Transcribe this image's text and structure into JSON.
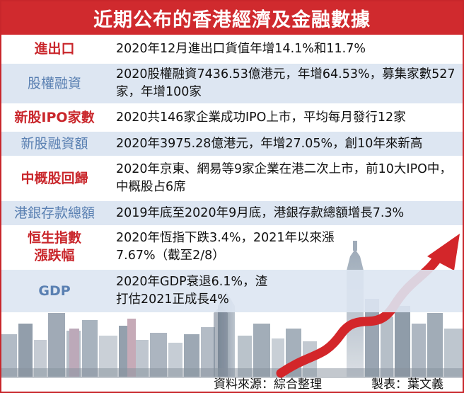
{
  "title": "近期公布的香港經濟及金融數據",
  "rows": [
    {
      "label": "進出口",
      "value": "2020年12月進出口貨值年增14.1%和11.7%"
    },
    {
      "label": "股權融資",
      "value": "2020股權融資7436.53億港元，年增64.53%，募集家數527家，年增100家"
    },
    {
      "label": "新股IPO家數",
      "value": "2020共146家企業成功IPO上市，平均每月發行12家"
    },
    {
      "label": "新股融資額",
      "value": "2020年3975.28億港元，年增27.05%，創10年來新高"
    },
    {
      "label": "中概股回歸",
      "value": "2020年京東、網易等9家企業在港二次上市，前10大IPO中，中概股占6席"
    },
    {
      "label": "港銀存款總額",
      "value": "2019年底至2020年9月底，港銀存款總額增長7.3%"
    },
    {
      "label": "恒生指數漲跌幅",
      "value": "2020年恆指下跌3.4%，2021年以來漲7.67%（截至2/8）"
    },
    {
      "label": "GDP",
      "value": "2020年GDP衰退6.1%，渣打估2021正成長4%"
    }
  ],
  "footer": {
    "source": "資料來源：綜合整理",
    "maker": "製表：葉文義"
  },
  "colors": {
    "header": "#d02a2e",
    "label_red": "#c9262b",
    "label_blue": "#5a80b2",
    "row_alt": "#dde6f2",
    "arrow": "#d3262a"
  }
}
